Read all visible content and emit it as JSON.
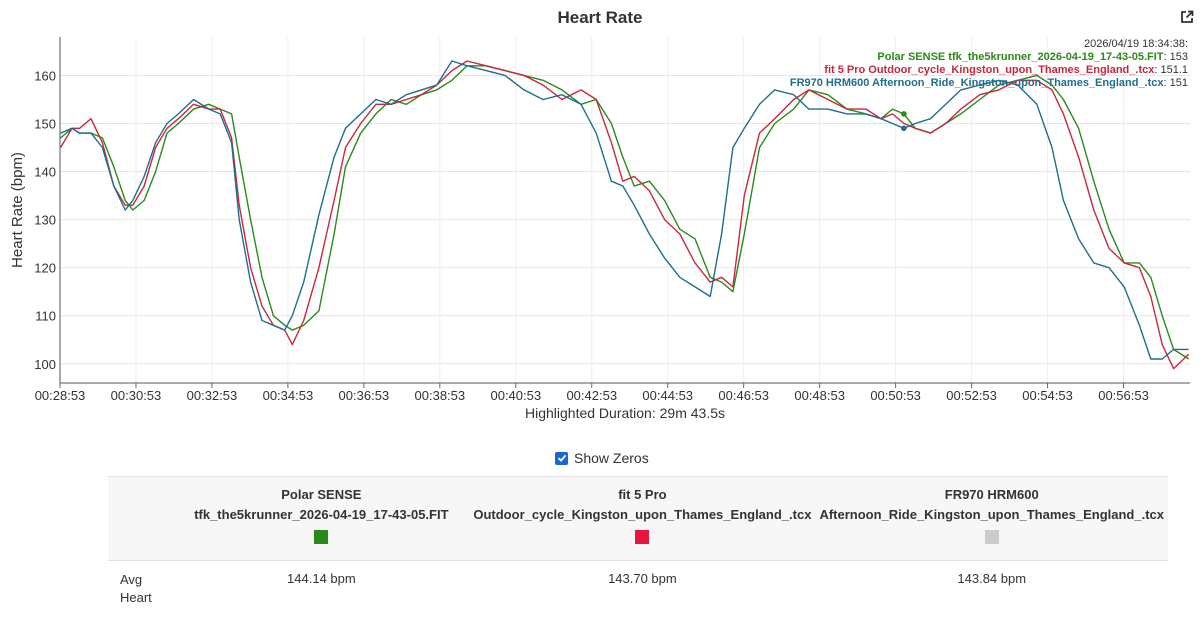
{
  "title": "Heart Rate",
  "export_icon": "external-link-icon",
  "highlighted_duration": "Highlighted Duration: 29m 43.5s",
  "show_zeros": {
    "label": "Show Zeros",
    "checked": true
  },
  "tooltip": {
    "timestamp": "2026/04/19 18:34:38:",
    "entries": [
      {
        "label": "Polar SENSE tfk_the5krunner_2026-04-19_17-43-05.FIT",
        "value": ": 153",
        "color": "#2a8a1a"
      },
      {
        "label": "fit 5 Pro Outdoor_cycle_Kingston_upon_Thames_England_.tcx",
        "value": ": 151.1",
        "color": "#c8283e"
      },
      {
        "label": "FR970 HRM600 Afternoon_Ride_Kingston_upon_Thames_England_.tcx",
        "value": ": 151",
        "color": "#1f6e8c"
      }
    ]
  },
  "chart_data": {
    "type": "line",
    "title": "Heart Rate",
    "xlabel": "Highlighted Duration: 29m 43.5s",
    "ylabel": "Heart Rate (bpm)",
    "ylim": [
      96,
      168
    ],
    "yticks": [
      100,
      110,
      120,
      130,
      140,
      150,
      160
    ],
    "xlim_minutes": [
      28.883,
      58.633
    ],
    "xticks_minutes": [
      28.883,
      30.883,
      32.883,
      34.883,
      36.883,
      38.883,
      40.883,
      42.883,
      44.883,
      46.883,
      48.883,
      50.883,
      52.883,
      54.883,
      56.883
    ],
    "xtick_labels": [
      "00:28:53",
      "00:30:53",
      "00:32:53",
      "00:34:53",
      "00:36:53",
      "00:38:53",
      "00:40:53",
      "00:42:53",
      "00:44:53",
      "00:46:53",
      "00:48:53",
      "00:50:53",
      "00:52:53",
      "00:54:53",
      "00:56:53"
    ],
    "grid": true,
    "hover_time_minutes": 51.1,
    "series": [
      {
        "name": "Polar SENSE tfk_the5krunner_2026-04-19_17-43-05.FIT",
        "color": "#2a8a1a",
        "x": [
          28.9,
          29.2,
          29.4,
          29.7,
          30.0,
          30.3,
          30.6,
          30.8,
          31.1,
          31.4,
          31.7,
          32.0,
          32.4,
          32.8,
          33.1,
          33.4,
          33.6,
          33.9,
          34.2,
          34.5,
          34.8,
          35.0,
          35.3,
          35.7,
          36.1,
          36.4,
          36.8,
          37.2,
          37.6,
          38.0,
          38.4,
          38.8,
          39.2,
          39.6,
          40.1,
          40.6,
          41.1,
          41.6,
          42.1,
          42.6,
          43.0,
          43.4,
          43.7,
          44.0,
          44.4,
          44.8,
          45.2,
          45.6,
          46.0,
          46.3,
          46.6,
          46.9,
          47.3,
          47.7,
          48.2,
          48.6,
          49.1,
          49.6,
          50.1,
          50.5,
          50.8,
          51.1,
          51.4,
          51.8,
          52.2,
          52.6,
          53.1,
          53.6,
          54.1,
          54.6,
          55.0,
          55.3,
          55.7,
          56.1,
          56.5,
          56.9,
          57.3,
          57.6,
          57.9,
          58.2,
          58.6
        ],
        "values": [
          147,
          149,
          148,
          148,
          147,
          141,
          134,
          132,
          134,
          140,
          148,
          150,
          153,
          154,
          153,
          152,
          143,
          130,
          118,
          110,
          108,
          107,
          108,
          111,
          127,
          141,
          148,
          152,
          155,
          154,
          156,
          157,
          159,
          162,
          162,
          161,
          160,
          159,
          157,
          154,
          155,
          150,
          143,
          137,
          138,
          134,
          128,
          126,
          118,
          117,
          115,
          127,
          145,
          150,
          153,
          157,
          156,
          153,
          152,
          151,
          153,
          152,
          149,
          148,
          150,
          152,
          155,
          158,
          159,
          160,
          158,
          155,
          149,
          138,
          128,
          121,
          121,
          118,
          110,
          103,
          101
        ]
      },
      {
        "name": "fit 5 Pro Outdoor_cycle_Kingston_upon_Thames_England_.tcx",
        "color": "#c8283e",
        "x": [
          28.9,
          29.2,
          29.4,
          29.7,
          30.0,
          30.3,
          30.6,
          30.8,
          31.1,
          31.4,
          31.7,
          32.0,
          32.4,
          32.8,
          33.1,
          33.4,
          33.6,
          33.9,
          34.2,
          34.5,
          34.8,
          35.0,
          35.3,
          35.7,
          36.1,
          36.4,
          36.8,
          37.2,
          37.6,
          38.0,
          38.4,
          38.8,
          39.2,
          39.6,
          40.1,
          40.6,
          41.1,
          41.6,
          42.1,
          42.6,
          43.0,
          43.4,
          43.7,
          44.0,
          44.4,
          44.8,
          45.2,
          45.6,
          46.0,
          46.3,
          46.6,
          46.9,
          47.3,
          47.7,
          48.2,
          48.6,
          49.1,
          49.6,
          50.1,
          50.5,
          50.8,
          51.1,
          51.4,
          51.8,
          52.2,
          52.6,
          53.1,
          53.6,
          54.1,
          54.6,
          55.0,
          55.3,
          55.7,
          56.1,
          56.5,
          56.9,
          57.3,
          57.6,
          57.9,
          58.2,
          58.6
        ],
        "values": [
          145,
          149,
          149,
          151,
          146,
          137,
          133,
          133,
          137,
          145,
          149,
          151,
          154,
          153,
          153,
          147,
          133,
          120,
          112,
          108,
          107,
          104,
          109,
          120,
          134,
          145,
          150,
          154,
          154,
          155,
          156,
          158,
          161,
          163,
          162,
          161,
          160,
          158,
          155,
          157,
          155,
          146,
          138,
          139,
          136,
          130,
          127,
          121,
          117,
          118,
          116,
          135,
          148,
          151,
          155,
          157,
          155,
          153,
          153,
          151,
          152,
          150,
          149,
          148,
          150,
          153,
          156,
          157,
          159,
          159,
          157,
          152,
          143,
          132,
          124,
          121,
          120,
          114,
          104,
          99,
          102
        ]
      },
      {
        "name": "FR970 HRM600 Afternoon_Ride_Kingston_upon_Thames_England_.tcx",
        "color": "#1f6e8c",
        "x": [
          28.9,
          29.2,
          29.4,
          29.7,
          30.0,
          30.3,
          30.6,
          30.8,
          31.1,
          31.4,
          31.7,
          32.0,
          32.4,
          32.8,
          33.1,
          33.4,
          33.6,
          33.9,
          34.2,
          34.5,
          34.8,
          35.0,
          35.3,
          35.7,
          36.1,
          36.4,
          36.8,
          37.2,
          37.6,
          38.0,
          38.4,
          38.8,
          39.2,
          39.6,
          40.1,
          40.6,
          41.1,
          41.6,
          42.1,
          42.6,
          43.0,
          43.4,
          43.7,
          44.0,
          44.4,
          44.8,
          45.2,
          45.6,
          46.0,
          46.3,
          46.6,
          46.9,
          47.3,
          47.7,
          48.2,
          48.6,
          49.1,
          49.6,
          50.1,
          50.5,
          50.8,
          51.1,
          51.4,
          51.8,
          52.2,
          52.6,
          53.1,
          53.6,
          54.1,
          54.6,
          55.0,
          55.3,
          55.7,
          56.1,
          56.5,
          56.9,
          57.3,
          57.6,
          57.9,
          58.2,
          58.6
        ],
        "values": [
          148,
          149,
          148,
          148,
          145,
          137,
          132,
          134,
          139,
          146,
          150,
          152,
          155,
          153,
          152,
          146,
          130,
          117,
          109,
          108,
          107,
          110,
          117,
          131,
          143,
          149,
          152,
          155,
          154,
          156,
          157,
          158,
          163,
          162,
          161,
          160,
          157,
          155,
          156,
          154,
          148,
          138,
          137,
          133,
          127,
          122,
          118,
          116,
          114,
          127,
          145,
          149,
          154,
          157,
          156,
          153,
          153,
          152,
          152,
          151,
          150,
          149,
          150,
          151,
          154,
          157,
          158,
          159,
          158,
          154,
          145,
          134,
          126,
          121,
          120,
          116,
          108,
          101,
          101,
          103,
          103
        ]
      }
    ]
  },
  "stats_table": {
    "columns": [
      {
        "device": "Polar SENSE",
        "file": "tfk_the5krunner_2026-04-19_17-43-05.FIT",
        "color": "#2a8a1a"
      },
      {
        "device": "fit 5 Pro",
        "file": "Outdoor_cycle_Kingston_upon_Thames_England_.tcx",
        "color": "#e8163c"
      },
      {
        "device": "FR970 HRM600",
        "file": "Afternoon_Ride_Kingston_upon_Thames_England_.tcx",
        "color": "#cccccc"
      }
    ],
    "rows": [
      {
        "label": "Avg Heart",
        "values": [
          "144.14 bpm",
          "143.70 bpm",
          "143.84 bpm"
        ]
      }
    ]
  }
}
